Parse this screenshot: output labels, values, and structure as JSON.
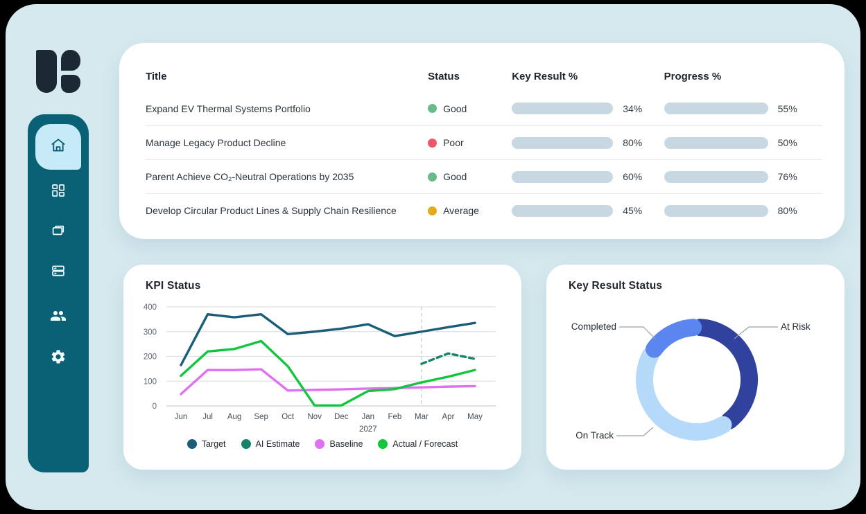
{
  "colors": {
    "surface": "#D6E9EF",
    "sidebar": "#0A6175",
    "active_tile": "#C6EAF8",
    "bar_fill": "#10657B",
    "bar_track": "#C8D8E3",
    "status_good": "#68BA8B",
    "status_poor": "#F0566B",
    "status_average": "#E5A91C"
  },
  "sidebar": {
    "items": [
      {
        "icon": "home-icon",
        "active": true
      },
      {
        "icon": "dashboard-grid-icon",
        "active": false
      },
      {
        "icon": "folders-icon",
        "active": false
      },
      {
        "icon": "server-icon",
        "active": false
      },
      {
        "icon": "team-icon",
        "active": false
      },
      {
        "icon": "gear-icon",
        "active": false
      }
    ]
  },
  "goals_table": {
    "columns": [
      "Title",
      "Status",
      "Key Result %",
      "Progress %"
    ],
    "rows": [
      {
        "title": "Expand EV Thermal Systems Portfolio",
        "status": "Good",
        "status_color": "#68BA8B",
        "key_result_pct": 34,
        "key_result_label": "34%",
        "progress_pct": 55,
        "progress_label": "55%"
      },
      {
        "title": "Manage Legacy Product Decline",
        "status": "Poor",
        "status_color": "#F0566B",
        "key_result_pct": 80,
        "key_result_label": "80%",
        "progress_pct": 50,
        "progress_label": "50%"
      },
      {
        "title": "Parent Achieve CO₂-Neutral Operations by 2035",
        "status": "Good",
        "status_color": "#68BA8B",
        "key_result_pct": 60,
        "key_result_label": "60%",
        "progress_pct": 76,
        "progress_label": "76%"
      },
      {
        "title": "Develop Circular Product Lines & Supply Chain Resilience",
        "status": "Average",
        "status_color": "#E5A91C",
        "key_result_pct": 45,
        "key_result_label": "45%",
        "progress_pct": 80,
        "progress_label": "80%"
      }
    ]
  },
  "chart_data": [
    {
      "type": "line",
      "title": "KPI Status",
      "x": [
        "Jun",
        "Jul",
        "Aug",
        "Sep",
        "Oct",
        "Nov",
        "Dec",
        "Jan",
        "Feb",
        "Mar",
        "Apr",
        "May"
      ],
      "x_year_label": {
        "text": "2027",
        "under": "Jan"
      },
      "ylim": [
        0,
        400
      ],
      "yticks": [
        0,
        100,
        200,
        300,
        400
      ],
      "grid": true,
      "legend_position": "bottom",
      "forecast_divider_x": "Mar",
      "series": [
        {
          "name": "Target",
          "color": "#1B5D78",
          "dash": false,
          "values": [
            165,
            370,
            358,
            370,
            290,
            300,
            312,
            330,
            282,
            300,
            318,
            335
          ]
        },
        {
          "name": "AI Estimate",
          "color": "#188368",
          "dash": true,
          "values": [
            null,
            null,
            null,
            null,
            null,
            null,
            null,
            null,
            null,
            170,
            212,
            190
          ]
        },
        {
          "name": "Baseline",
          "color": "#E070F2",
          "dash": false,
          "values": [
            48,
            145,
            145,
            148,
            62,
            65,
            67,
            70,
            72,
            75,
            78,
            80
          ]
        },
        {
          "name": "Actual / Forecast",
          "color": "#12C53C",
          "dash": false,
          "values": [
            122,
            220,
            230,
            262,
            160,
            2,
            2,
            60,
            68,
            95,
            118,
            145
          ]
        }
      ]
    },
    {
      "type": "pie",
      "donut": true,
      "title": "Key Result Status",
      "segments": [
        {
          "label": "At Risk",
          "value": 41,
          "color": "#31419E"
        },
        {
          "label": "On Track",
          "value": 44,
          "color": "#B5D9F8"
        },
        {
          "label": "Completed",
          "value": 15,
          "color": "#5C86EF"
        }
      ]
    }
  ]
}
